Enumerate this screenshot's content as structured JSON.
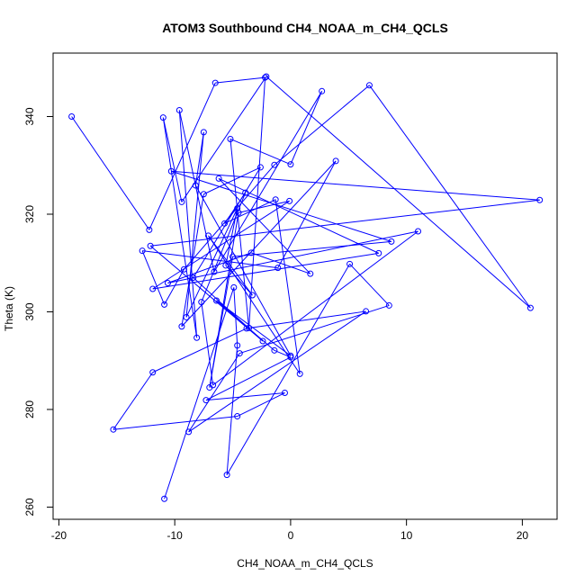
{
  "chart_data": {
    "type": "scatter",
    "title": "ATOM3 Southbound CH4_NOAA_m_CH4_QCLS",
    "xlabel": "CH4_NOAA_m_CH4_QCLS",
    "ylabel": "Theta (K)",
    "xlim": [
      -20.5,
      23
    ],
    "ylim": [
      257.5,
      353
    ],
    "xticks": [
      -20,
      -10,
      0,
      10,
      20
    ],
    "yticks": [
      260,
      280,
      300,
      320,
      340
    ],
    "grid": false,
    "legend": "none",
    "series_color": "#0000ff",
    "connect_points": true,
    "series": [
      {
        "x": [
          -18.9,
          -12.2,
          -6.5,
          -2.2,
          -3.6,
          -5.2,
          0.0,
          2.7,
          -6.6,
          -9.6,
          -8.1,
          -11.0,
          -9.4,
          -2.1,
          20.7,
          6.8,
          -1.4,
          -9.2,
          -10.9,
          -12.8,
          -1.1,
          3.9,
          -9.4,
          -7.5,
          -2.6,
          -8.4,
          -2.4,
          -12.1,
          21.5,
          -10.3,
          8.7,
          -5.0,
          -7.0,
          -4.5,
          -0.1,
          -11.9,
          7.6,
          -6.2,
          1.7,
          -3.4,
          -10.6,
          11.0,
          -6.7,
          -7.7,
          -3.9,
          -5.7,
          -1.3,
          0.8,
          -7.1,
          -3.3,
          -5.6,
          -4.6,
          -9.0,
          -7.5,
          -8.2,
          0.0,
          -6.4,
          -1.4,
          0.0,
          -7.3,
          -0.5,
          -4.6,
          -15.3,
          -11.9,
          -3.8,
          6.5,
          -8.8,
          -4.4,
          8.5,
          5.1,
          -5.5,
          -4.6,
          -4.9,
          -10.9
        ],
        "y": [
          340.0,
          316.8,
          346.9,
          348.0,
          296.7,
          335.4,
          330.2,
          345.2,
          308.2,
          341.3,
          294.7,
          339.8,
          322.5,
          348.2,
          300.8,
          346.4,
          330.1,
          308.7,
          301.5,
          312.5,
          309.0,
          330.9,
          297.0,
          324.1,
          329.6,
          307.0,
          294.0,
          313.5,
          322.9,
          328.8,
          314.4,
          311.3,
          284.5,
          320.3,
          322.7,
          304.7,
          312.0,
          327.3,
          307.8,
          312.1,
          305.9,
          316.5,
          285.0,
          302.0,
          324.4,
          318.1,
          323.0,
          287.3,
          315.6,
          303.4,
          309.5,
          321.2,
          298.9,
          336.8,
          325.9,
          291.0,
          302.3,
          292.1,
          290.7,
          281.9,
          283.4,
          278.6,
          275.9,
          287.6,
          296.6,
          300.1,
          275.4,
          291.5,
          301.3,
          309.8,
          266.6,
          293.1,
          305.0,
          261.7
        ]
      }
    ]
  }
}
